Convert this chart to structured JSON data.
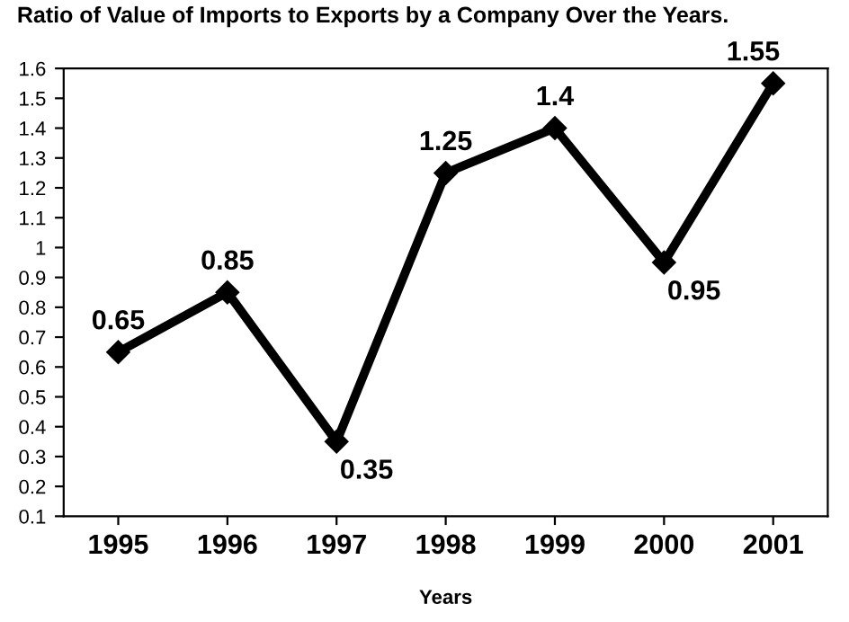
{
  "chart_data": {
    "type": "line",
    "title": "Ratio of Value of Imports to Exports by a Company Over the Years.",
    "xlabel": "Years",
    "categories": [
      "1995",
      "1996",
      "1997",
      "1998",
      "1999",
      "2000",
      "2001"
    ],
    "series": [
      {
        "color": "#000000",
        "values": [
          0.65,
          0.85,
          0.35,
          1.25,
          1.4,
          0.95,
          1.55
        ]
      }
    ],
    "ylim": [
      0.1,
      1.6
    ],
    "yticks": [
      0.1,
      0.2,
      0.3,
      0.4,
      0.5,
      0.6,
      0.7,
      0.8,
      0.9,
      1,
      1.1,
      1.2,
      1.3,
      1.4,
      1.5,
      1.6
    ],
    "data_labels": true,
    "marker": "diamond",
    "line_style": "solid",
    "grid": false
  }
}
